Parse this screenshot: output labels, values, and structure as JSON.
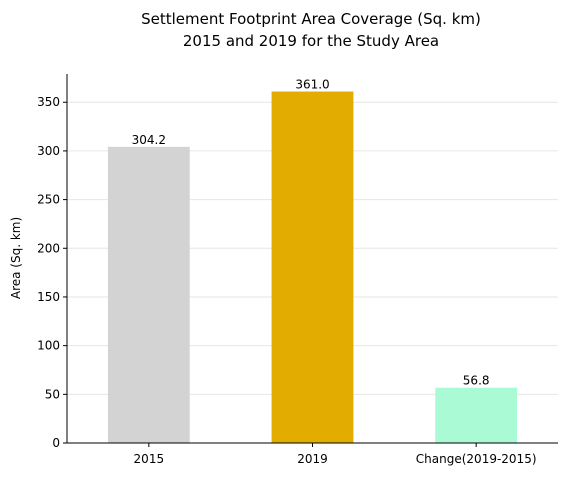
{
  "chart_data": {
    "type": "bar",
    "title_line1": "Settlement Footprint Area Coverage (Sq. km)",
    "title_line2": "2015 and 2019 for the Study Area",
    "xlabel": "",
    "ylabel": "Area (Sq. km)",
    "categories": [
      "2015",
      "2019",
      "Change(2019-2015)"
    ],
    "values": [
      304.2,
      361.0,
      56.8
    ],
    "value_labels": [
      "304.2",
      "361.0",
      "56.8"
    ],
    "colors": [
      "#d3d3d3",
      "#e3ac00",
      "#abfad6"
    ],
    "ylim": [
      0,
      379
    ],
    "yticks": [
      0,
      50,
      100,
      150,
      200,
      250,
      300,
      350
    ],
    "grid": "horizontal dashed",
    "legend": "none"
  }
}
